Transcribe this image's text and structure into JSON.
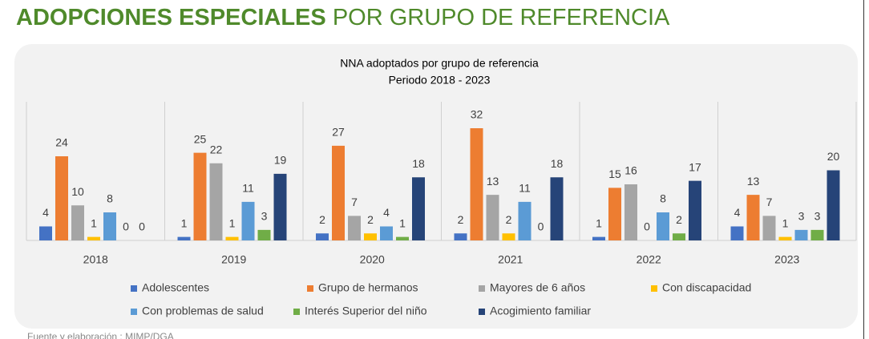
{
  "header": {
    "title_bold": "ADOPCIONES ESPECIALES",
    "title_rest": "POR GRUPO DE REFERENCIA"
  },
  "chart_data": {
    "type": "bar",
    "title": "NNA  adoptados por grupo de referencia",
    "subtitle": "Periodo 2018 - 2023",
    "categories": [
      "2018",
      "2019",
      "2020",
      "2021",
      "2022",
      "2023"
    ],
    "series": [
      {
        "name": "Adolescentes",
        "color": "#4472c4",
        "values": [
          4,
          1,
          2,
          2,
          1,
          4
        ]
      },
      {
        "name": "Grupo de hermanos",
        "color": "#ed7d31",
        "values": [
          24,
          25,
          27,
          32,
          15,
          13
        ]
      },
      {
        "name": "Mayores de 6 años",
        "color": "#a5a5a5",
        "values": [
          10,
          22,
          7,
          13,
          16,
          7
        ]
      },
      {
        "name": "Con discapacidad",
        "color": "#ffc000",
        "values": [
          1,
          1,
          2,
          2,
          0,
          1
        ]
      },
      {
        "name": "Con problemas de salud",
        "color": "#5b9bd5",
        "values": [
          8,
          11,
          4,
          11,
          8,
          3
        ]
      },
      {
        "name": "Interés Superior del niño",
        "color": "#70ad47",
        "values": [
          0,
          3,
          1,
          0,
          2,
          3
        ]
      },
      {
        "name": "Acogimiento familiar",
        "color": "#264478",
        "values": [
          0,
          19,
          18,
          18,
          17,
          20
        ]
      }
    ]
  },
  "source": "Fuente  y elaboración : MIMP/DGA"
}
